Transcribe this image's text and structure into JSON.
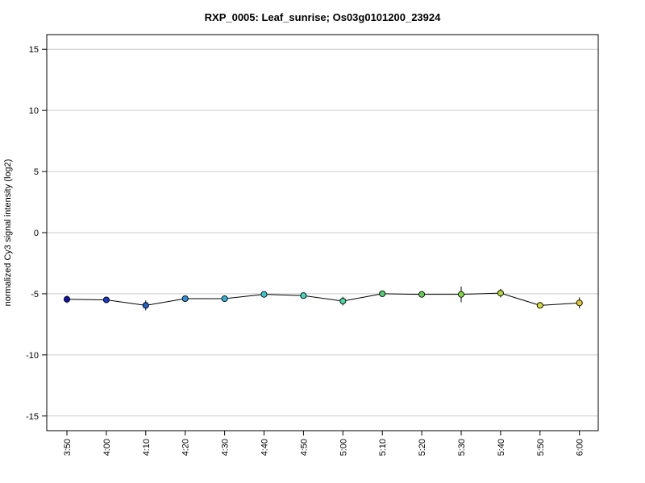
{
  "chart_data": {
    "type": "line",
    "title": "RXP_0005: Leaf_sunrise; Os03g0101200_23924",
    "xlabel": "",
    "ylabel": "normalized Cy3 signal intensity (log2)",
    "categories": [
      "3:50",
      "4:00",
      "4:10",
      "4:20",
      "4:30",
      "4:40",
      "4:50",
      "5:00",
      "5:10",
      "5:20",
      "5:30",
      "5:40",
      "5:50",
      "6:00"
    ],
    "values": [
      -5.45,
      -5.5,
      -5.95,
      -5.4,
      -5.4,
      -5.05,
      -5.15,
      -5.6,
      -5.0,
      -5.05,
      -5.05,
      -4.95,
      -5.95,
      -5.75
    ],
    "error": [
      0.3,
      0.15,
      0.4,
      0.15,
      0.15,
      0.15,
      0.2,
      0.35,
      0.15,
      0.25,
      0.65,
      0.35,
      0.15,
      0.45
    ],
    "point_colors": [
      "#1010b0",
      "#1838c8",
      "#2060d0",
      "#2a90d8",
      "#30b0d8",
      "#38c8d0",
      "#40d8c0",
      "#48d8a0",
      "#50d070",
      "#60d050",
      "#80d840",
      "#b0d838",
      "#d8d838",
      "#e8c830"
    ],
    "y_ticks": [
      -15,
      -10,
      -5,
      0,
      5,
      10,
      15
    ],
    "ylim": [
      -16.2,
      16.2
    ],
    "grid": true,
    "grid_color": "#cccccc",
    "line_color": "#000000"
  }
}
